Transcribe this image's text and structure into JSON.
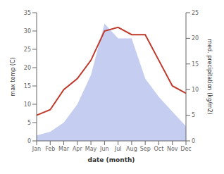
{
  "chart_data": {
    "type": "line",
    "categories": [
      "Jan",
      "Feb",
      "Mar",
      "Apr",
      "May",
      "Jun",
      "Jul",
      "Aug",
      "Sep",
      "Oct",
      "Nov",
      "Dec"
    ],
    "series": [
      {
        "type": "area",
        "color": "#c5cef0",
        "values": [
          1.5,
          2.5,
          5,
          10,
          18,
          32,
          28,
          28,
          17,
          12,
          8,
          4
        ]
      },
      {
        "type": "line",
        "color": "#c0392b",
        "values": [
          7,
          8.5,
          14,
          17,
          22,
          30,
          31,
          29,
          29,
          22,
          15,
          13
        ]
      }
    ],
    "xlabel": "date (month)",
    "ylabel": "max temp (C)",
    "y2label": "med. precipitation (kg/m2)",
    "ylim": [
      0,
      35
    ],
    "yticks": [
      0,
      5,
      10,
      15,
      20,
      25,
      30,
      35
    ],
    "y2lim": [
      0,
      25
    ],
    "y2ticks": [
      0,
      5,
      10,
      15,
      20,
      25
    ]
  }
}
